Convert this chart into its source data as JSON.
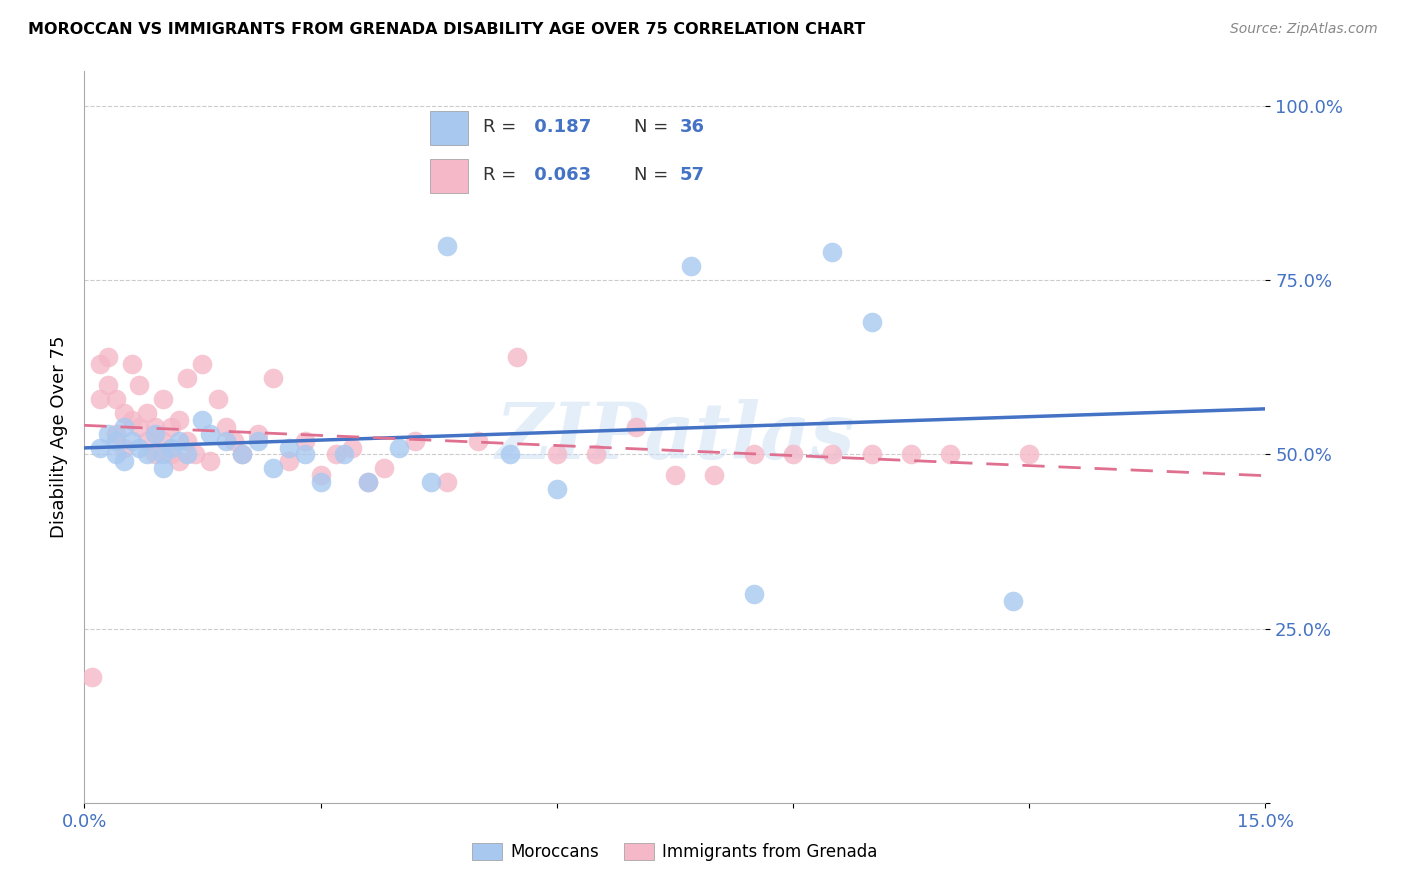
{
  "title": "MOROCCAN VS IMMIGRANTS FROM GRENADA DISABILITY AGE OVER 75 CORRELATION CHART",
  "source": "Source: ZipAtlas.com",
  "ylabel": "Disability Age Over 75",
  "xmin": 0.0,
  "xmax": 0.15,
  "ymin": 0.0,
  "ymax": 1.05,
  "r1": 0.187,
  "n1": 36,
  "r2": 0.063,
  "n2": 57,
  "color_blue": "#a8c8f0",
  "color_pink": "#f5b8c8",
  "color_blue_line": "#4472c4",
  "color_pink_line": "#e07090",
  "watermark": "ZIPatlas",
  "moroccan_x": [
    0.002,
    0.003,
    0.004,
    0.004,
    0.005,
    0.005,
    0.006,
    0.007,
    0.008,
    0.009,
    0.01,
    0.01,
    0.011,
    0.012,
    0.013,
    0.015,
    0.016,
    0.018,
    0.02,
    0.022,
    0.024,
    0.026,
    0.028,
    0.03,
    0.033,
    0.036,
    0.04,
    0.044,
    0.046,
    0.054,
    0.06,
    0.077,
    0.085,
    0.095,
    0.1,
    0.118
  ],
  "moroccan_y": [
    0.51,
    0.53,
    0.52,
    0.5,
    0.54,
    0.49,
    0.52,
    0.51,
    0.5,
    0.53,
    0.5,
    0.48,
    0.51,
    0.52,
    0.5,
    0.55,
    0.53,
    0.52,
    0.5,
    0.52,
    0.48,
    0.51,
    0.5,
    0.46,
    0.5,
    0.46,
    0.51,
    0.46,
    0.8,
    0.5,
    0.45,
    0.77,
    0.3,
    0.79,
    0.69,
    0.29
  ],
  "grenada_x": [
    0.001,
    0.002,
    0.002,
    0.003,
    0.003,
    0.004,
    0.004,
    0.005,
    0.005,
    0.006,
    0.006,
    0.007,
    0.007,
    0.008,
    0.008,
    0.009,
    0.009,
    0.01,
    0.01,
    0.011,
    0.011,
    0.012,
    0.012,
    0.013,
    0.013,
    0.014,
    0.015,
    0.016,
    0.017,
    0.018,
    0.019,
    0.02,
    0.022,
    0.024,
    0.026,
    0.028,
    0.03,
    0.032,
    0.034,
    0.036,
    0.038,
    0.042,
    0.046,
    0.05,
    0.055,
    0.06,
    0.065,
    0.07,
    0.075,
    0.08,
    0.085,
    0.09,
    0.095,
    0.1,
    0.105,
    0.11,
    0.12
  ],
  "grenada_y": [
    0.18,
    0.63,
    0.58,
    0.6,
    0.64,
    0.58,
    0.53,
    0.56,
    0.51,
    0.63,
    0.55,
    0.54,
    0.6,
    0.52,
    0.56,
    0.54,
    0.5,
    0.52,
    0.58,
    0.5,
    0.54,
    0.55,
    0.49,
    0.61,
    0.52,
    0.5,
    0.63,
    0.49,
    0.58,
    0.54,
    0.52,
    0.5,
    0.53,
    0.61,
    0.49,
    0.52,
    0.47,
    0.5,
    0.51,
    0.46,
    0.48,
    0.52,
    0.46,
    0.52,
    0.64,
    0.5,
    0.5,
    0.54,
    0.47,
    0.47,
    0.5,
    0.5,
    0.5,
    0.5,
    0.5,
    0.5,
    0.5
  ]
}
